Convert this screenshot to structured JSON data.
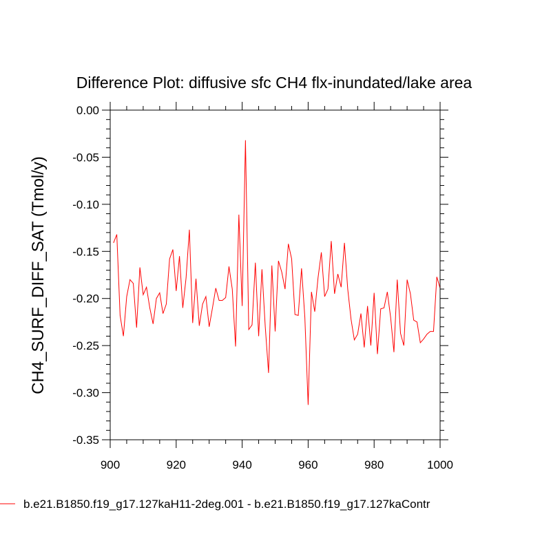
{
  "chart_data": {
    "type": "line",
    "title": "Difference Plot: diffusive sfc CH4 flx-inundated/lake area",
    "xlabel": "",
    "ylabel": "CH4_SURF_DIFF_SAT  (Tmol/y)",
    "xlim": [
      900,
      1000
    ],
    "ylim": [
      -0.35,
      0.0
    ],
    "xticks": [
      900,
      920,
      940,
      960,
      980,
      1000
    ],
    "xtick_labels": [
      "900",
      "920",
      "940",
      "960",
      "980",
      "1000"
    ],
    "yticks": [
      0.0,
      -0.05,
      -0.1,
      -0.15,
      -0.2,
      -0.25,
      -0.3,
      -0.35
    ],
    "ytick_labels": [
      "0.00",
      "-0.05",
      "-0.10",
      "-0.15",
      "-0.20",
      "-0.25",
      "-0.30",
      "-0.35"
    ],
    "grid": false,
    "legend_position": "bottom",
    "series": [
      {
        "name": "b.e21.B1850.f19_g17.127kaH11-2deg.001 - b.e21.B1850.f19_g17.127kaContr",
        "color": "#ff0000",
        "x": [
          901,
          902,
          903,
          904,
          905,
          906,
          907,
          908,
          909,
          910,
          911,
          912,
          913,
          914,
          915,
          916,
          917,
          918,
          919,
          920,
          921,
          922,
          923,
          924,
          925,
          926,
          927,
          928,
          929,
          930,
          931,
          932,
          933,
          934,
          935,
          936,
          937,
          938,
          939,
          940,
          941,
          942,
          943,
          944,
          945,
          946,
          947,
          948,
          949,
          950,
          951,
          952,
          953,
          954,
          955,
          956,
          957,
          958,
          959,
          960,
          961,
          962,
          963,
          964,
          965,
          966,
          967,
          968,
          969,
          970,
          971,
          972,
          973,
          974,
          975,
          976,
          977,
          978,
          979,
          980,
          981,
          982,
          983,
          984,
          985,
          986,
          987,
          988,
          989,
          990,
          991,
          992,
          993,
          994,
          995,
          996,
          997,
          998,
          999,
          1000
        ],
        "y": [
          -0.141,
          -0.132,
          -0.218,
          -0.24,
          -0.198,
          -0.18,
          -0.184,
          -0.231,
          -0.167,
          -0.196,
          -0.188,
          -0.21,
          -0.227,
          -0.2,
          -0.194,
          -0.216,
          -0.206,
          -0.158,
          -0.148,
          -0.192,
          -0.155,
          -0.21,
          -0.178,
          -0.127,
          -0.226,
          -0.179,
          -0.229,
          -0.206,
          -0.198,
          -0.23,
          -0.21,
          -0.189,
          -0.202,
          -0.202,
          -0.199,
          -0.166,
          -0.19,
          -0.251,
          -0.111,
          -0.208,
          -0.032,
          -0.233,
          -0.228,
          -0.162,
          -0.24,
          -0.169,
          -0.23,
          -0.279,
          -0.165,
          -0.235,
          -0.16,
          -0.172,
          -0.19,
          -0.142,
          -0.158,
          -0.217,
          -0.218,
          -0.168,
          -0.22,
          -0.313,
          -0.193,
          -0.214,
          -0.178,
          -0.151,
          -0.198,
          -0.19,
          -0.139,
          -0.195,
          -0.174,
          -0.188,
          -0.141,
          -0.19,
          -0.222,
          -0.244,
          -0.238,
          -0.216,
          -0.252,
          -0.208,
          -0.25,
          -0.194,
          -0.259,
          -0.211,
          -0.21,
          -0.193,
          -0.22,
          -0.257,
          -0.18,
          -0.237,
          -0.25,
          -0.18,
          -0.195,
          -0.223,
          -0.225,
          -0.247,
          -0.243,
          -0.238,
          -0.235,
          -0.235,
          -0.177,
          -0.189
        ]
      }
    ]
  }
}
